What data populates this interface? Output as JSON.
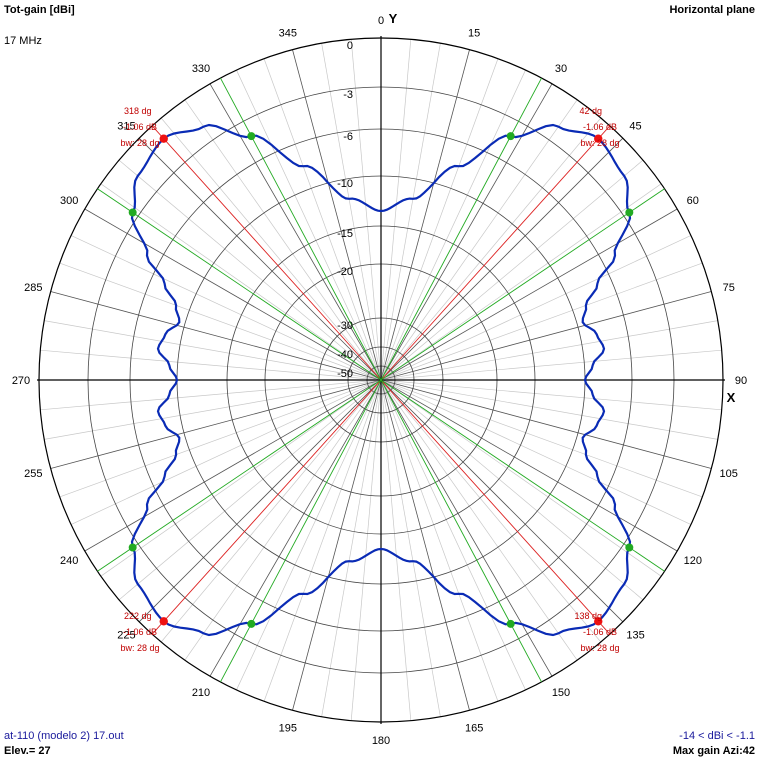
{
  "header": {
    "quantity": "Tot-gain [dBi]",
    "frequency": "17 MHz",
    "plane": "Horizontal plane"
  },
  "footer": {
    "file": "at-110 (modelo 2) 17.out",
    "elevation": "Elev.= 27",
    "range": "-14 < dBi < -1.1",
    "max_gain": "Max gain Azi:42"
  },
  "colors": {
    "pattern": "#0a2bb5",
    "beam_lines": "#22aa22",
    "max_lines": "#dd2222",
    "grid": "#000000",
    "annotation": "#c00000"
  },
  "chart_data": {
    "type": "polar",
    "axis_labels": {
      "x": "X",
      "y": "Y"
    },
    "azimuth_ticks": [
      "0",
      "15",
      "30",
      "45",
      "60",
      "75",
      "90",
      "105",
      "120",
      "135",
      "150",
      "165",
      "180",
      "195",
      "210",
      "225",
      "240",
      "255",
      "270",
      "285",
      "300",
      "315",
      "330",
      "345"
    ],
    "radial_ticks": [
      "0",
      "-3",
      "-6",
      "-10",
      "-15",
      "-20",
      "-30",
      "-40",
      "-50"
    ],
    "radial_ticks_db": [
      0,
      -3,
      -6,
      -10,
      -15,
      -20,
      -30,
      -40,
      -50
    ],
    "pattern_points": [
      {
        "az": 0,
        "db": -13.5
      },
      {
        "az": 10,
        "db": -12.0
      },
      {
        "az": 20,
        "db": -8.0
      },
      {
        "az": 28,
        "db": -4.2
      },
      {
        "az": 35,
        "db": -2.0
      },
      {
        "az": 42,
        "db": -1.06
      },
      {
        "az": 50,
        "db": -1.5
      },
      {
        "az": 56,
        "db": -2.6
      },
      {
        "az": 62,
        "db": -5.0
      },
      {
        "az": 66,
        "db": -7.2
      },
      {
        "az": 70,
        "db": -8.8
      },
      {
        "az": 74,
        "db": -9.5
      },
      {
        "az": 78,
        "db": -8.6
      },
      {
        "az": 82,
        "db": -8.2
      },
      {
        "az": 86,
        "db": -9.3
      },
      {
        "az": 90,
        "db": -10.0
      }
    ],
    "lobes": [
      {
        "azimuth": 42,
        "label": "42 dg",
        "gain": "-1.06 dB",
        "bw": "bw: 28 dg",
        "half_power": [
          28,
          56
        ]
      },
      {
        "azimuth": 138,
        "label": "138 dg",
        "gain": "-1.06 dB",
        "bw": "bw: 28 dg",
        "half_power": [
          124,
          152
        ]
      },
      {
        "azimuth": 222,
        "label": "222 dg",
        "gain": "-1.06 dB",
        "bw": "bw: 28 dg",
        "half_power": [
          208,
          236
        ]
      },
      {
        "azimuth": 318,
        "label": "318 dg",
        "gain": "-1.06 dB",
        "bw": "bw: 28 dg",
        "half_power": [
          304,
          332
        ]
      }
    ],
    "grid": true
  }
}
